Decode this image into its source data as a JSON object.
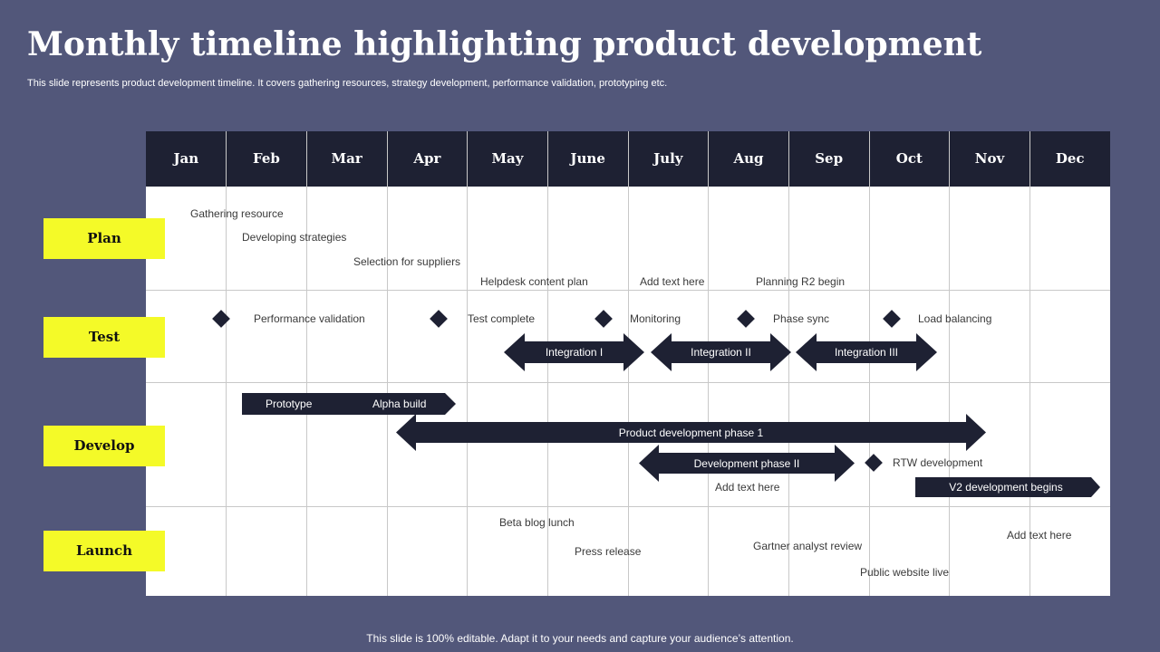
{
  "header": {
    "title": "Monthly timeline highlighting product development",
    "subtitle": "This slide represents product development timeline. It covers gathering resources, strategy development, performance validation, prototyping etc."
  },
  "months": [
    "Jan",
    "Feb",
    "Mar",
    "Apr",
    "May",
    "June",
    "July",
    "Aug",
    "Sep",
    "Oct",
    "Nov",
    "Dec"
  ],
  "rows": {
    "plan": "Plan",
    "test": "Test",
    "develop": "Develop",
    "launch": "Launch"
  },
  "plan": {
    "gathering": "Gathering resource",
    "strategies": "Developing  strategies",
    "suppliers": "Selection for suppliers",
    "helpdesk": "Helpdesk content plan",
    "add_text": "Add text here",
    "planning_r2": "Planning R2 begin"
  },
  "test": {
    "performance": "Performance  validation",
    "test_complete": "Test complete",
    "monitoring": "Monitoring",
    "phase_sync": "Phase sync",
    "load_balancing": "Load  balancing",
    "integration_1": "Integration  I",
    "integration_2": "Integration  II",
    "integration_3": "Integration  III"
  },
  "develop": {
    "prototype": "Prototype",
    "alpha_build": "Alpha build",
    "phase_1": "Product development  phase 1",
    "phase_2": "Development  phase II",
    "rtw": "RTW development",
    "add_text": "Add text here",
    "v2": "V2 development  begins"
  },
  "launch": {
    "beta_blog": "Beta blog lunch",
    "press_release": "Press release",
    "gartner": "Gartner  analyst review",
    "public_website": "Public website live",
    "add_text": "Add text here"
  },
  "footer": "This slide is 100% editable. Adapt it to your needs and capture your audience’s attention.",
  "colors": {
    "background": "#52577a",
    "dark": "#1e2133",
    "label_yellow": "#f4fa28"
  }
}
